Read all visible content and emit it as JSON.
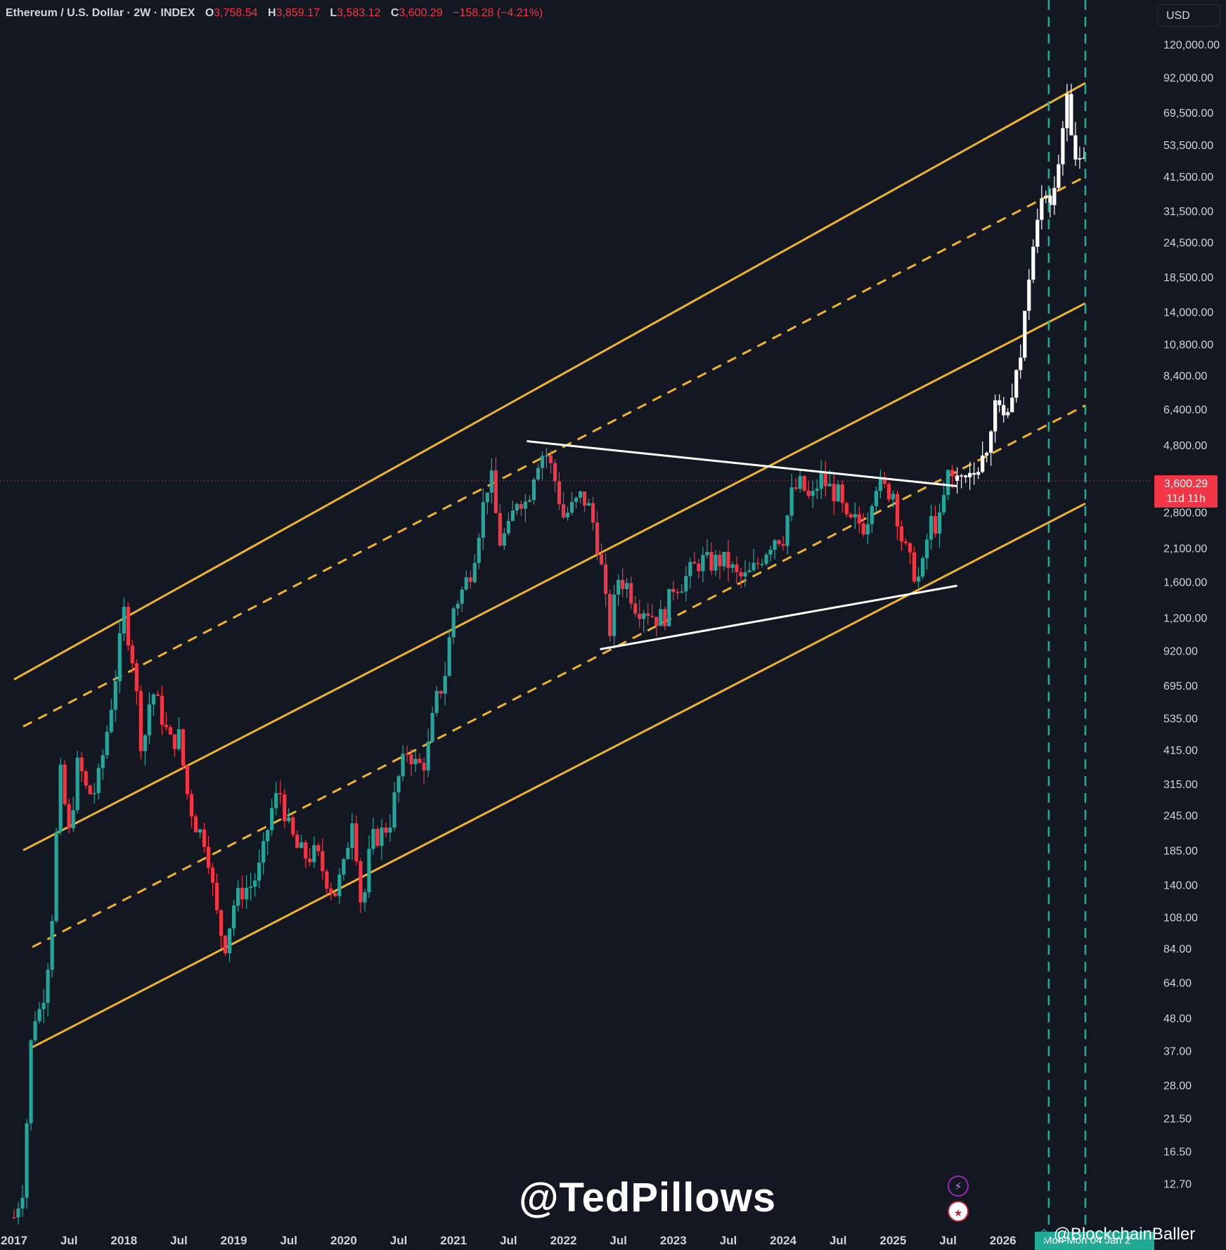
{
  "header": {
    "symbol": "Ethereum / U.S. Dollar · 2W · INDEX",
    "open_label": "O",
    "open": "3,758.54",
    "high_label": "H",
    "high": "3,859.17",
    "low_label": "L",
    "low": "3,583.12",
    "close_label": "C",
    "close": "3,600.29",
    "change": "−158.28 (−4.21%)"
  },
  "currency": "USD",
  "price_tag": {
    "price": "3,600.29",
    "countdown": "11d 11h"
  },
  "watermark": "@TedPillows",
  "credit": "@BlockchainBaller",
  "date_tag": "Mon   Mon 04 Jan 2",
  "colors": {
    "background": "#131722",
    "up": "#26a69a",
    "down": "#f23645",
    "projection": "#ffffff",
    "channel": "#f0b429",
    "triangle": "#ffffff",
    "vertical_marker": "#22ab94",
    "axis_text": "#d1d4dc"
  },
  "chart_data": {
    "type": "candlestick",
    "scale": "log",
    "ylim": [
      9.5,
      130000
    ],
    "x_range": [
      "2017-01",
      "2027-01"
    ],
    "y_ticks": [
      "120,000.00",
      "92,000.00",
      "69,500.00",
      "53,500.00",
      "41,500.00",
      "31,500.00",
      "24,500.00",
      "18,500.00",
      "14,000.00",
      "10,800.00",
      "8,400.00",
      "6,400.00",
      "4,800.00",
      "2,800.00",
      "2,100.00",
      "1,600.00",
      "1,200.00",
      "920.00",
      "695.00",
      "535.00",
      "415.00",
      "315.00",
      "245.00",
      "185.00",
      "140.00",
      "108.00",
      "84.00",
      "64.00",
      "48.00",
      "37.00",
      "28.00",
      "21.50",
      "16.50",
      "12.70"
    ],
    "y_tick_values": [
      120000,
      92000,
      69500,
      53500,
      41500,
      31500,
      24500,
      18500,
      14000,
      10800,
      8400,
      6400,
      4800,
      2800,
      2100,
      1600,
      1200,
      920,
      695,
      535,
      415,
      315,
      245,
      185,
      140,
      108,
      84,
      64,
      48,
      37,
      28,
      21.5,
      16.5,
      12.7
    ],
    "x_ticks": [
      {
        "label": "2017",
        "date": "2017-01"
      },
      {
        "label": "Jul",
        "date": "2017-07"
      },
      {
        "label": "2018",
        "date": "2018-01"
      },
      {
        "label": "Jul",
        "date": "2018-07"
      },
      {
        "label": "2019",
        "date": "2019-01"
      },
      {
        "label": "Jul",
        "date": "2019-07"
      },
      {
        "label": "2020",
        "date": "2020-01"
      },
      {
        "label": "Jul",
        "date": "2020-07"
      },
      {
        "label": "2021",
        "date": "2021-01"
      },
      {
        "label": "Jul",
        "date": "2021-07"
      },
      {
        "label": "2022",
        "date": "2022-01"
      },
      {
        "label": "Jul",
        "date": "2022-07"
      },
      {
        "label": "2023",
        "date": "2023-01"
      },
      {
        "label": "Jul",
        "date": "2023-07"
      },
      {
        "label": "2024",
        "date": "2024-01"
      },
      {
        "label": "Jul",
        "date": "2024-07"
      },
      {
        "label": "2025",
        "date": "2025-01"
      },
      {
        "label": "Jul",
        "date": "2025-07"
      },
      {
        "label": "2026",
        "date": "2026-01"
      }
    ],
    "price_path": [
      [
        "2017-01",
        9.7
      ],
      [
        "2017-02",
        12.5
      ],
      [
        "2017-03",
        48
      ],
      [
        "2017-04",
        52
      ],
      [
        "2017-05",
        90
      ],
      [
        "2017-06",
        350
      ],
      [
        "2017-07",
        210
      ],
      [
        "2017-08",
        380
      ],
      [
        "2017-09",
        290
      ],
      [
        "2017-10",
        300
      ],
      [
        "2017-11",
        450
      ],
      [
        "2017-12",
        720
      ],
      [
        "2018-01",
        1250
      ],
      [
        "2018-02",
        850
      ],
      [
        "2018-03",
        400
      ],
      [
        "2018-04",
        680
      ],
      [
        "2018-05",
        560
      ],
      [
        "2018-06",
        440
      ],
      [
        "2018-07",
        460
      ],
      [
        "2018-08",
        280
      ],
      [
        "2018-09",
        220
      ],
      [
        "2018-10",
        200
      ],
      [
        "2018-11",
        115
      ],
      [
        "2018-12",
        85
      ],
      [
        "2019-01",
        120
      ],
      [
        "2019-02",
        135
      ],
      [
        "2019-03",
        140
      ],
      [
        "2019-04",
        165
      ],
      [
        "2019-05",
        250
      ],
      [
        "2019-06",
        300
      ],
      [
        "2019-07",
        220
      ],
      [
        "2019-08",
        185
      ],
      [
        "2019-09",
        175
      ],
      [
        "2019-10",
        180
      ],
      [
        "2019-11",
        150
      ],
      [
        "2019-12",
        130
      ],
      [
        "2020-01",
        160
      ],
      [
        "2020-02",
        255
      ],
      [
        "2020-03",
        110
      ],
      [
        "2020-04",
        200
      ],
      [
        "2020-05",
        210
      ],
      [
        "2020-06",
        230
      ],
      [
        "2020-07",
        330
      ],
      [
        "2020-08",
        420
      ],
      [
        "2020-09",
        360
      ],
      [
        "2020-10",
        380
      ],
      [
        "2020-11",
        600
      ],
      [
        "2020-12",
        740
      ],
      [
        "2021-01",
        1300
      ],
      [
        "2021-02",
        1500
      ],
      [
        "2021-03",
        1800
      ],
      [
        "2021-04",
        2700
      ],
      [
        "2021-05",
        3900
      ],
      [
        "2021-06",
        2200
      ],
      [
        "2021-07",
        2400
      ],
      [
        "2021-08",
        3200
      ],
      [
        "2021-09",
        3000
      ],
      [
        "2021-10",
        4200
      ],
      [
        "2021-11",
        4600
      ],
      [
        "2021-12",
        3700
      ],
      [
        "2022-01",
        2700
      ],
      [
        "2022-02",
        2900
      ],
      [
        "2022-03",
        3200
      ],
      [
        "2022-04",
        2800
      ],
      [
        "2022-05",
        1950
      ],
      [
        "2022-06",
        1050
      ],
      [
        "2022-07",
        1650
      ],
      [
        "2022-08",
        1550
      ],
      [
        "2022-09",
        1300
      ],
      [
        "2022-10",
        1300
      ],
      [
        "2022-11",
        1200
      ],
      [
        "2022-12",
        1200
      ],
      [
        "2023-01",
        1550
      ],
      [
        "2023-02",
        1600
      ],
      [
        "2023-03",
        1750
      ],
      [
        "2023-04",
        1900
      ],
      [
        "2023-05",
        1850
      ],
      [
        "2023-06",
        1900
      ],
      [
        "2023-07",
        1850
      ],
      [
        "2023-08",
        1650
      ],
      [
        "2023-09",
        1650
      ],
      [
        "2023-10",
        1800
      ],
      [
        "2023-11",
        2050
      ],
      [
        "2023-12",
        2300
      ],
      [
        "2024-01",
        2300
      ],
      [
        "2024-02",
        3300
      ],
      [
        "2024-03",
        3500
      ],
      [
        "2024-04",
        3000
      ],
      [
        "2024-05",
        3700
      ],
      [
        "2024-06",
        3400
      ],
      [
        "2024-07",
        3200
      ],
      [
        "2024-08",
        2500
      ],
      [
        "2024-09",
        2600
      ],
      [
        "2024-10",
        2500
      ],
      [
        "2024-11",
        3600
      ],
      [
        "2024-12",
        3350
      ],
      [
        "2025-01",
        3300
      ],
      [
        "2025-02",
        2200
      ],
      [
        "2025-03",
        1800
      ],
      [
        "2025-04",
        1600
      ],
      [
        "2025-05",
        2600
      ],
      [
        "2025-06",
        2500
      ],
      [
        "2025-07",
        3750
      ],
      [
        "2025-08",
        3600
      ]
    ],
    "projection_path": [
      [
        "2025-08",
        3600
      ],
      [
        "2025-09",
        3900
      ],
      [
        "2025-10",
        4100
      ],
      [
        "2025-11",
        4400
      ],
      [
        "2025-12",
        6500
      ],
      [
        "2026-01",
        5900
      ],
      [
        "2026-02",
        6800
      ],
      [
        "2026-03",
        10200
      ],
      [
        "2026-04",
        22000
      ],
      [
        "2026-05",
        35000
      ],
      [
        "2026-06",
        33000
      ],
      [
        "2026-07",
        41500
      ],
      [
        "2026-08",
        86000
      ],
      [
        "2026-09",
        42000
      ],
      [
        "2026-10",
        52000
      ]
    ],
    "channel_lines": [
      {
        "name": "upper",
        "style": "solid",
        "from": [
          "2017-01",
          730
        ],
        "to": [
          "2026-10",
          88000
        ]
      },
      {
        "name": "upper-mid",
        "style": "dashed",
        "from": [
          "2017-02",
          500
        ],
        "to": [
          "2026-10",
          41500
        ]
      },
      {
        "name": "middle",
        "style": "solid",
        "from": [
          "2017-02",
          185
        ],
        "to": [
          "2026-10",
          15000
        ]
      },
      {
        "name": "lower-mid",
        "style": "dashed",
        "from": [
          "2017-03",
          85
        ],
        "to": [
          "2026-10",
          6600
        ]
      },
      {
        "name": "lower",
        "style": "solid",
        "from": [
          "2017-03",
          38
        ],
        "to": [
          "2026-10",
          3000
        ]
      }
    ],
    "triangle_lines": [
      {
        "name": "resistance",
        "from": [
          "2021-09",
          4950
        ],
        "to": [
          "2025-08",
          3450
        ]
      },
      {
        "name": "support",
        "from": [
          "2022-05",
          930
        ],
        "to": [
          "2025-08",
          1550
        ]
      }
    ],
    "vertical_markers": [
      "2026-06",
      "2026-10"
    ],
    "current_price": 3600.29
  }
}
